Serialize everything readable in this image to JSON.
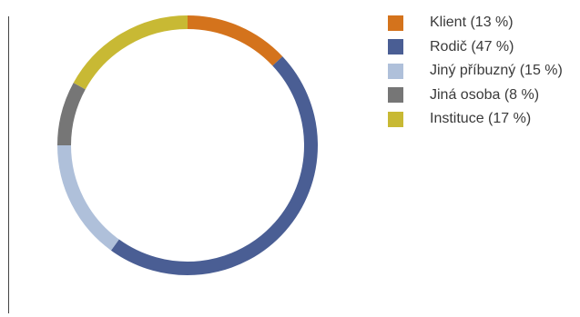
{
  "chart_data": {
    "type": "pie",
    "variant": "donut",
    "title": "",
    "legend_position": "right",
    "categories": [
      "Klient",
      "Rodič",
      "Jiný příbuzný",
      "Jiná osoba",
      "Instituce"
    ],
    "values": [
      13,
      47,
      15,
      8,
      17
    ],
    "unit": "%",
    "colors": [
      "#D4731C",
      "#4A5E94",
      "#AFC0DA",
      "#767676",
      "#C8B934"
    ],
    "legend_labels": [
      "Klient (13 %)",
      "Rodič (47 %)",
      "Jiný příbuzný (15 %)",
      "Jiná osoba (8 %)",
      "Instituce (17 %)"
    ]
  }
}
